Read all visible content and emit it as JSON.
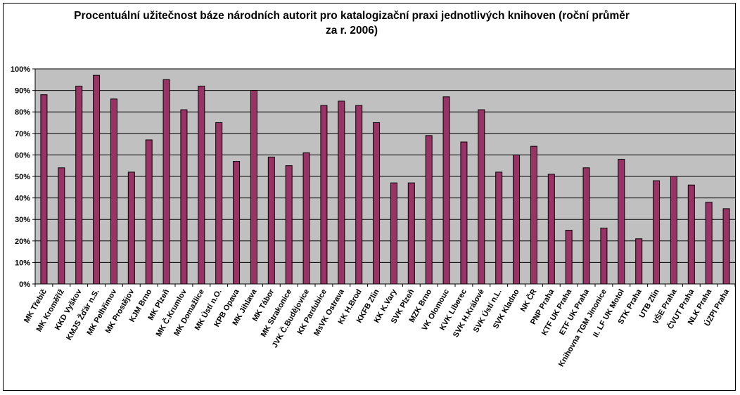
{
  "chart_data": {
    "type": "bar",
    "title_line1": "Procentuální užitečnost báze národních autorit pro katalogizační praxi jednotlivých knihoven (roční průměr",
    "title_line2": "za r. 2006)",
    "ylim": [
      0,
      100
    ],
    "yticks": [
      "0%",
      "10%",
      "20%",
      "30%",
      "40%",
      "50%",
      "60%",
      "70%",
      "80%",
      "90%",
      "100%"
    ],
    "grid": true,
    "legend": "none",
    "colors": {
      "bar": "#993366",
      "plot_bg": "#c0c0c0",
      "grid": "#000000"
    },
    "categories": [
      "MK Třebíč",
      "MK Kroměříž",
      "KKD Vyškov",
      "KMJS Žďár n.S.",
      "MK Pelhřimov",
      "MK Prostějov",
      "KJM Brno",
      "MK Plzeň",
      "MK Č.Krumlov",
      "MK Domažlice",
      "MK Ústí n.O.",
      "KPB Opava",
      "MK Jihlava",
      "MK Tábor",
      "MK Strakonice",
      "JVK Č.Budějovice",
      "KK Pardubice",
      "MsVK Ostrava",
      "KK H.Brod",
      "KKFB Zlín",
      "KK K.Vary",
      "SVK Plzeň",
      "MZK Brno",
      "VK Olomouc",
      "KVK Liberec",
      "SVK H.Králové",
      "SVK Ústí n.L.",
      "SVK Kladno",
      "NK ČR",
      "PNP Praha",
      "KTF UK Praha",
      "ETF UK Praha",
      "Knihovna TGM Jinonice",
      "II. LF UK Motol",
      "STK Praha",
      "UTB Zlín",
      "VŠE Praha",
      "ČVUT Praha",
      "NLK Praha",
      "ÚZPI Praha"
    ],
    "values": [
      88,
      54,
      92,
      97,
      86,
      52,
      67,
      95,
      81,
      92,
      75,
      57,
      90,
      59,
      55,
      61,
      83,
      85,
      83,
      75,
      47,
      47,
      69,
      87,
      66,
      81,
      52,
      60,
      64,
      51,
      25,
      54,
      26,
      58,
      21,
      48,
      50,
      46,
      38,
      35
    ]
  }
}
